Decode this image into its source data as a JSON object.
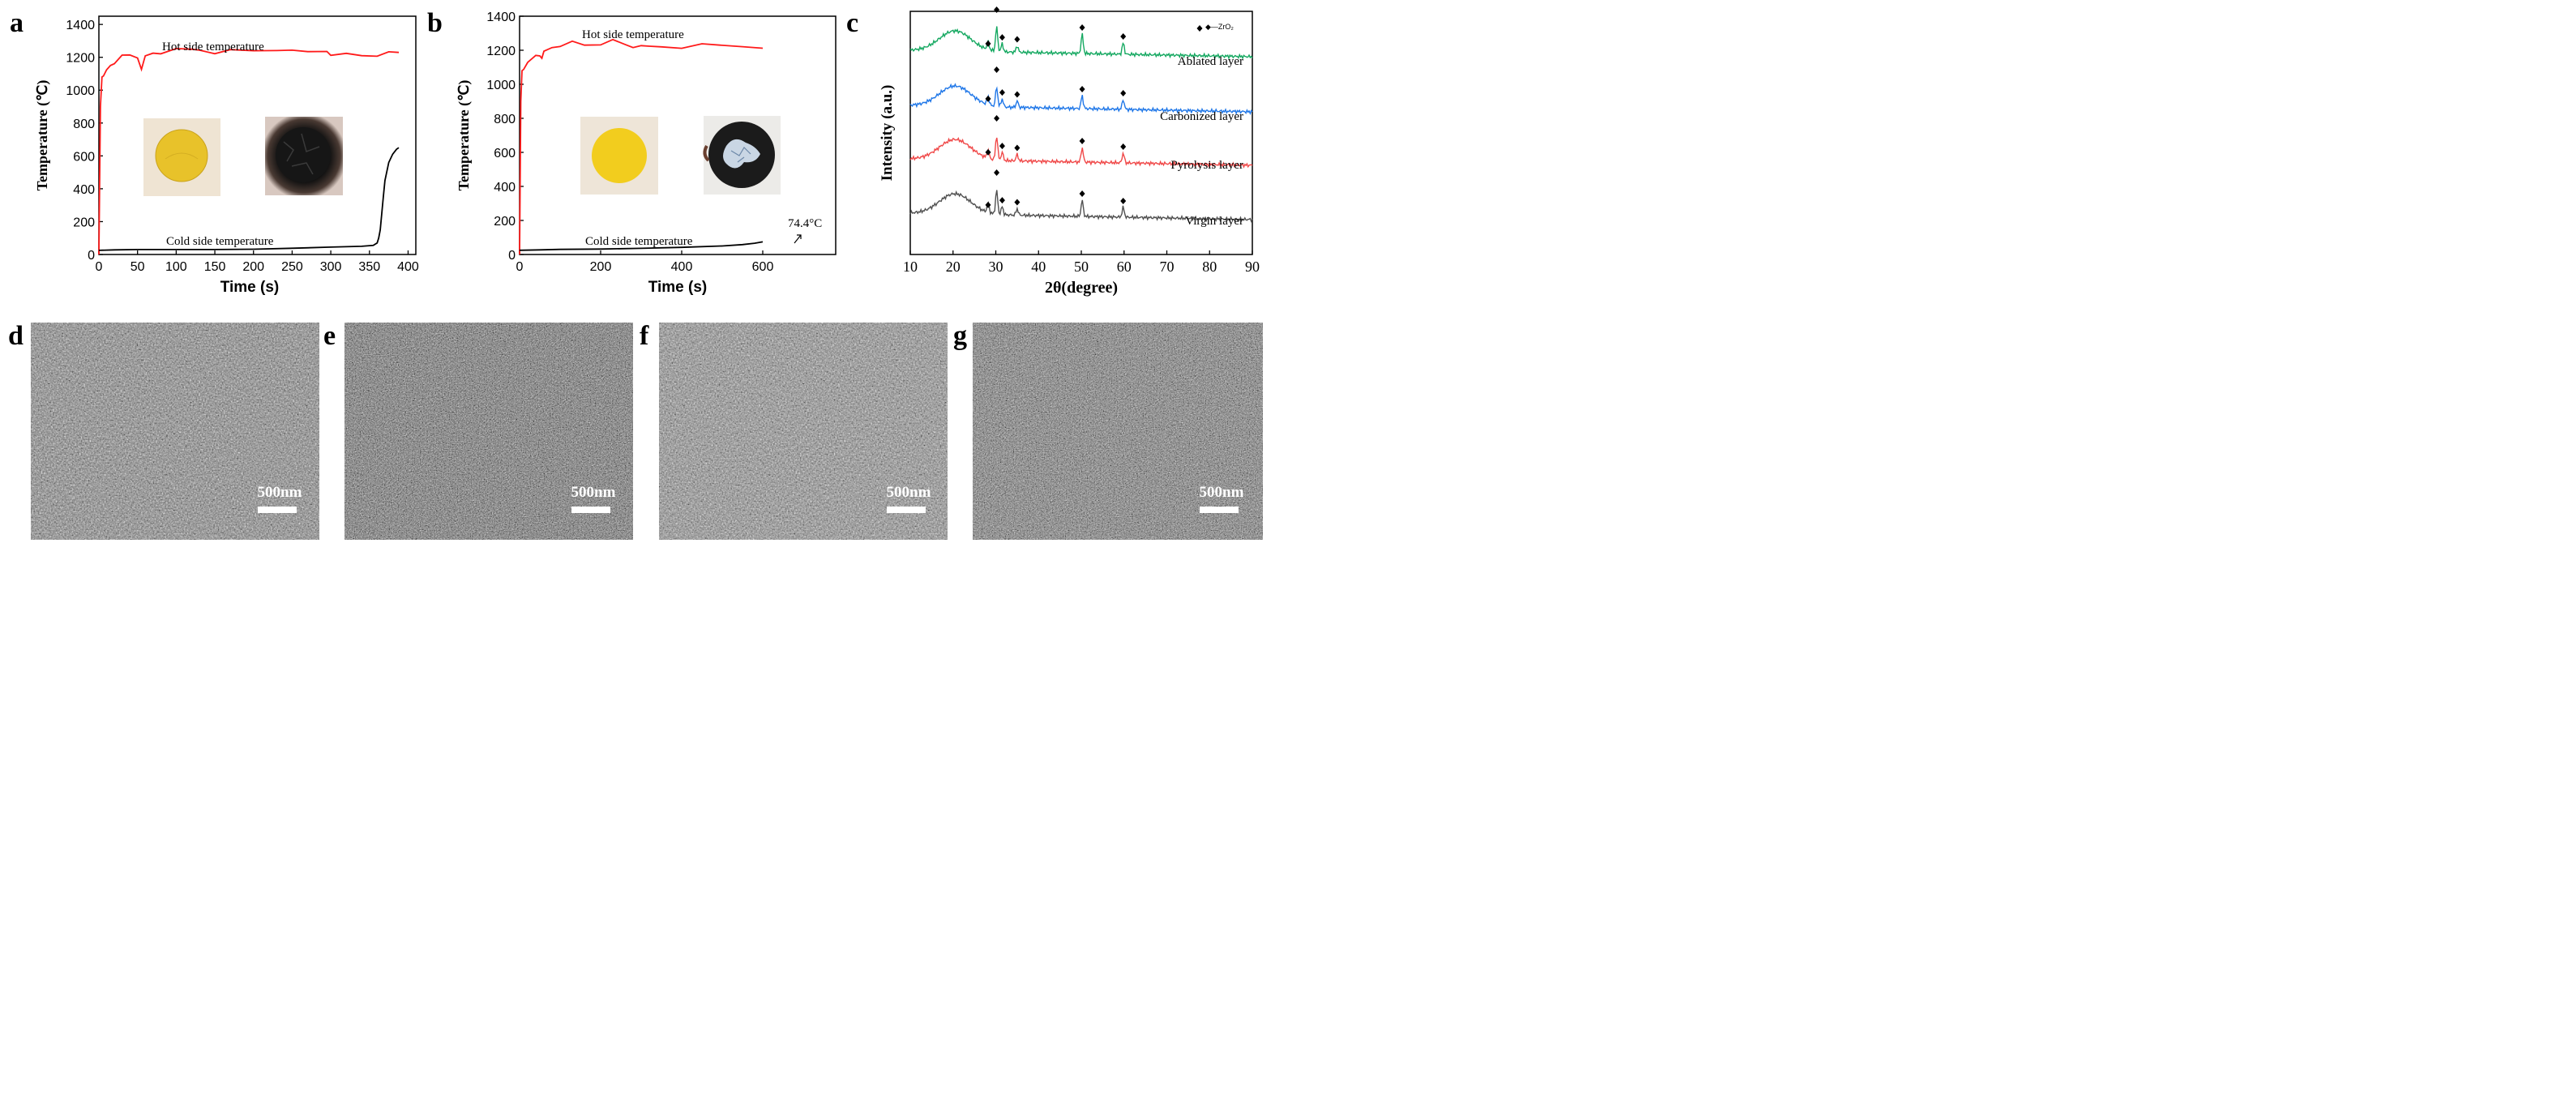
{
  "chart_data": [
    {
      "panel": "a",
      "type": "line",
      "xlabel": "Time (s)",
      "ylabel": "Temperature (℃)",
      "xlim": [
        0,
        410
      ],
      "ylim": [
        0,
        1450
      ],
      "xticks": [
        0,
        50,
        100,
        150,
        200,
        250,
        300,
        350,
        400
      ],
      "yticks": [
        0,
        200,
        400,
        600,
        800,
        1000,
        1200,
        1400
      ],
      "series": [
        {
          "name": "Hot side temperature",
          "color": "#ff1a1a",
          "x": [
            0,
            2,
            4,
            6,
            10,
            15,
            20,
            30,
            40,
            50,
            55,
            60,
            70,
            80,
            100,
            120,
            130,
            150,
            170,
            200,
            230,
            250,
            270,
            295,
            300,
            320,
            340,
            360,
            375,
            388
          ],
          "y": [
            0,
            900,
            1080,
            1100,
            1115,
            1150,
            1170,
            1200,
            1210,
            1200,
            1140,
            1200,
            1225,
            1230,
            1240,
            1245,
            1248,
            1235,
            1238,
            1240,
            1250,
            1230,
            1230,
            1240,
            1225,
            1215,
            1210,
            1215,
            1220,
            1225
          ]
        },
        {
          "name": "Cold side temperature",
          "color": "#000000",
          "x": [
            0,
            20,
            50,
            100,
            150,
            200,
            250,
            300,
            340,
            355,
            360,
            362,
            364,
            366,
            368,
            370,
            375,
            380,
            385,
            388
          ],
          "y": [
            25,
            28,
            30,
            30,
            30,
            32,
            38,
            45,
            50,
            55,
            70,
            100,
            150,
            250,
            350,
            450,
            560,
            610,
            640,
            650
          ]
        }
      ],
      "annotations": [
        "Hot side temperature",
        "Cold side temperature"
      ],
      "inset_photos": [
        "virgin sample (yellow disc)",
        "ablated sample (charred)"
      ]
    },
    {
      "panel": "b",
      "type": "line",
      "xlabel": "Time (s)",
      "ylabel": "Temperature (℃)",
      "xlim": [
        0,
        780
      ],
      "ylim": [
        0,
        1400
      ],
      "xticks": [
        0,
        200,
        400,
        600
      ],
      "yticks": [
        0,
        200,
        400,
        600,
        800,
        1000,
        1200,
        1400
      ],
      "series": [
        {
          "name": "Hot side temperature",
          "color": "#ff1a1a",
          "x": [
            0,
            3,
            6,
            10,
            20,
            40,
            50,
            55,
            60,
            80,
            100,
            130,
            160,
            200,
            230,
            260,
            280,
            300,
            320,
            350,
            400,
            450,
            500,
            550,
            600
          ],
          "y": [
            0,
            900,
            1080,
            1100,
            1120,
            1170,
            1175,
            1140,
            1190,
            1220,
            1235,
            1245,
            1230,
            1240,
            1250,
            1230,
            1220,
            1240,
            1215,
            1220,
            1220,
            1225,
            1225,
            1225,
            1225
          ]
        },
        {
          "name": "Cold side temperature",
          "color": "#000000",
          "x": [
            0,
            50,
            100,
            200,
            300,
            400,
            500,
            550,
            580,
            600
          ],
          "y": [
            25,
            27,
            30,
            32,
            36,
            42,
            50,
            58,
            66,
            74.4
          ]
        }
      ],
      "annotations": [
        "Hot side temperature",
        "Cold side temperature",
        "74.4°C"
      ],
      "inset_photos": [
        "virgin sample (yellow disc)",
        "ablated sample (black with white crystals)"
      ]
    },
    {
      "panel": "c",
      "type": "line",
      "xlabel": "2θ(degree)",
      "ylabel": "Intensity (a.u.)",
      "xlim": [
        10,
        90
      ],
      "xticks": [
        10,
        20,
        30,
        40,
        50,
        60,
        70,
        80,
        90
      ],
      "legend": "◆—ZrO₂",
      "peak_positions": [
        28.2,
        30.2,
        31.5,
        35.0,
        50.2,
        59.8
      ],
      "series": [
        {
          "name": "Ablated layer",
          "color": "#14a860"
        },
        {
          "name": "Carbonized layer",
          "color": "#1f77e8"
        },
        {
          "name": "Pyrolysis layer",
          "color": "#f04848"
        },
        {
          "name": "Virgin layer",
          "color": "#505050"
        }
      ]
    }
  ],
  "panel_labels": [
    "a",
    "b",
    "c",
    "d",
    "e",
    "f",
    "g"
  ],
  "sem_panels": [
    {
      "label": "d",
      "scale_bar": "500nm"
    },
    {
      "label": "e",
      "scale_bar": "500nm"
    },
    {
      "label": "f",
      "scale_bar": "500nm"
    },
    {
      "label": "g",
      "scale_bar": "500nm"
    }
  ]
}
